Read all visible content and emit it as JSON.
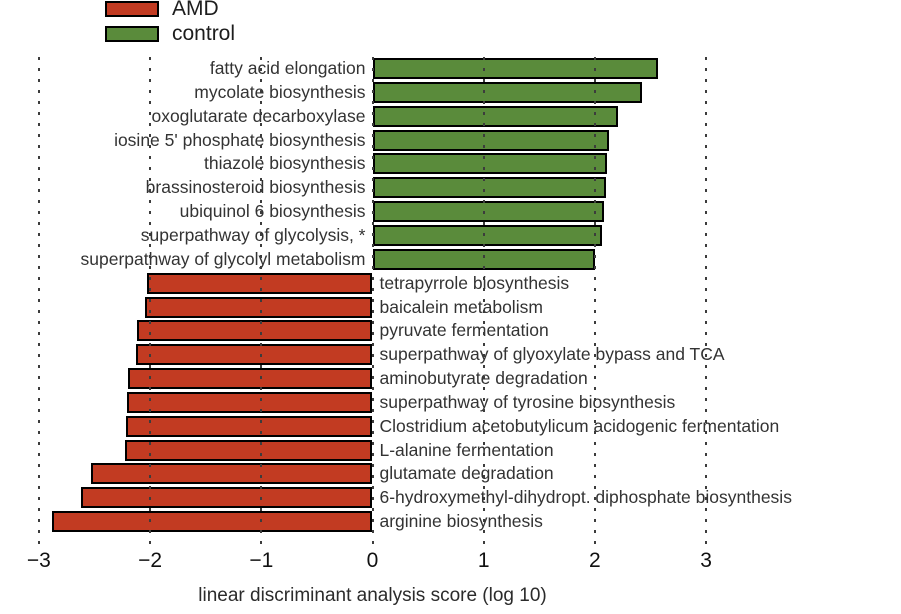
{
  "legend": {
    "items": [
      {
        "label": "AMD",
        "color": "#C23B22"
      },
      {
        "label": "control",
        "color": "#5A8B3B"
      }
    ]
  },
  "chart_data": {
    "type": "bar",
    "orientation": "horizontal",
    "title": "",
    "xlabel": "linear discriminant analysis score (log 10)",
    "ylabel": "",
    "xlim": [
      -3.3,
      3.4
    ],
    "grid": "vertical-dashed",
    "legend_position": "top-left",
    "x_ticks": [
      -3,
      -2,
      -1,
      0,
      1,
      2,
      3
    ],
    "x_tick_labels": [
      "−3",
      "−2",
      "−1",
      "0",
      "1",
      "2",
      "3"
    ],
    "groups": {
      "AMD": {
        "color": "#C23B22",
        "direction": "negative"
      },
      "control": {
        "color": "#5A8B3B",
        "direction": "positive"
      }
    },
    "rows": [
      {
        "label": "fatty acid elongation",
        "value": 2.57,
        "group": "control"
      },
      {
        "label": "mycolate biosynthesis",
        "value": 2.42,
        "group": "control"
      },
      {
        "label": "oxoglutarate decarboxylase",
        "value": 2.21,
        "group": "control"
      },
      {
        "label": "iosine 5' phosphate biosynthesis",
        "value": 2.13,
        "group": "control"
      },
      {
        "label": "thiazole biosynthesis",
        "value": 2.11,
        "group": "control"
      },
      {
        "label": "brassinosteroid biosynthesis",
        "value": 2.1,
        "group": "control"
      },
      {
        "label": "ubiquinol 6 biosynthesis",
        "value": 2.08,
        "group": "control"
      },
      {
        "label": "superpathway of glycolysis, *",
        "value": 2.06,
        "group": "control"
      },
      {
        "label": "superpathway of glycolyl metabolism",
        "value": 2.0,
        "group": "control"
      },
      {
        "label": "tetrapyrrole biosynthesis",
        "value": -2.03,
        "group": "AMD"
      },
      {
        "label": "baicalein metabolism",
        "value": -2.05,
        "group": "AMD"
      },
      {
        "label": "pyruvate fermentation",
        "value": -2.12,
        "group": "AMD"
      },
      {
        "label": "superpathway of glyoxylate bypass and TCA",
        "value": -2.13,
        "group": "AMD"
      },
      {
        "label": "aminobutyrate degradation",
        "value": -2.2,
        "group": "AMD"
      },
      {
        "label": "superpathway of tyrosine biosynthesis",
        "value": -2.21,
        "group": "AMD"
      },
      {
        "label": "Clostridium acetobutylicum acidogenic fermentation",
        "value": -2.22,
        "group": "AMD"
      },
      {
        "label": "L-alanine fermentation",
        "value": -2.23,
        "group": "AMD"
      },
      {
        "label": "glutamate degradation",
        "value": -2.53,
        "group": "AMD"
      },
      {
        "label": "6-hydroxymethyl-dihydropt. diphosphate biosynthesis",
        "value": -2.62,
        "group": "AMD"
      },
      {
        "label": "arginine biosynthesis",
        "value": -2.88,
        "group": "AMD"
      }
    ]
  }
}
